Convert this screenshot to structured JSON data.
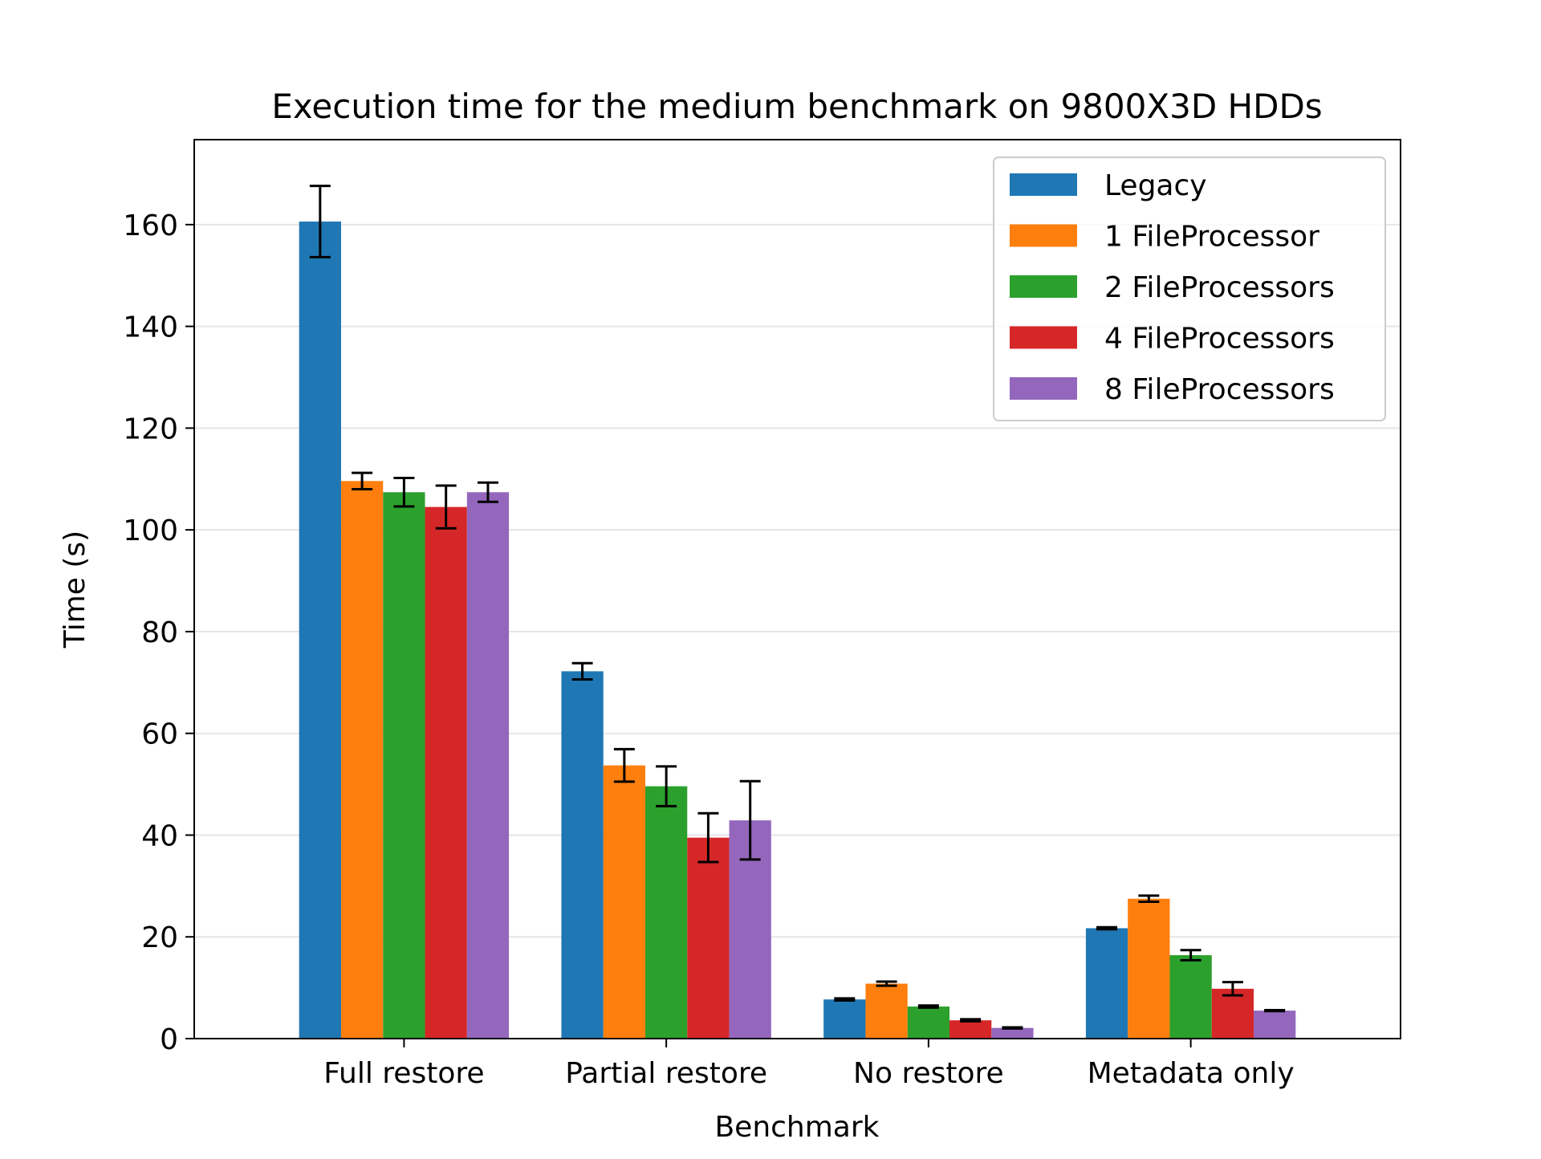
{
  "chart_data": {
    "type": "bar",
    "title": "Execution time for the medium benchmark on 9800X3D HDDs",
    "xlabel": "Benchmark",
    "ylabel": "Time (s)",
    "categories": [
      "Full restore",
      "Partial restore",
      "No restore",
      "Metadata only"
    ],
    "ylim": [
      0,
      176.7
    ],
    "yticks": [
      0,
      20,
      40,
      60,
      80,
      100,
      120,
      140,
      160
    ],
    "ytick_labels": [
      "0",
      "20",
      "40",
      "60",
      "80",
      "100",
      "120",
      "140",
      "160"
    ],
    "grid": "horizontal",
    "legend_position": "top-right",
    "series": [
      {
        "name": "Legacy",
        "color": "#1f77b4",
        "values": [
          160.6,
          72.2,
          7.7,
          21.7
        ],
        "errors": [
          7.0,
          1.6,
          0.2,
          0.2
        ]
      },
      {
        "name": "1 FileProcessor",
        "color": "#ff7f0e",
        "values": [
          109.6,
          53.7,
          10.8,
          27.5
        ],
        "errors": [
          1.6,
          3.2,
          0.4,
          0.6
        ]
      },
      {
        "name": "2 FileProcessors",
        "color": "#2ca02c",
        "values": [
          107.4,
          49.6,
          6.3,
          16.4
        ],
        "errors": [
          2.8,
          3.9,
          0.2,
          1.0
        ]
      },
      {
        "name": "4 FileProcessors",
        "color": "#d62728",
        "values": [
          104.5,
          39.5,
          3.6,
          9.8
        ],
        "errors": [
          4.2,
          4.8,
          0.2,
          1.3
        ]
      },
      {
        "name": "8 FileProcessors",
        "color": "#9467bd",
        "values": [
          107.4,
          42.9,
          2.1,
          5.5
        ],
        "errors": [
          1.9,
          7.7,
          0.1,
          0.1
        ]
      }
    ]
  }
}
